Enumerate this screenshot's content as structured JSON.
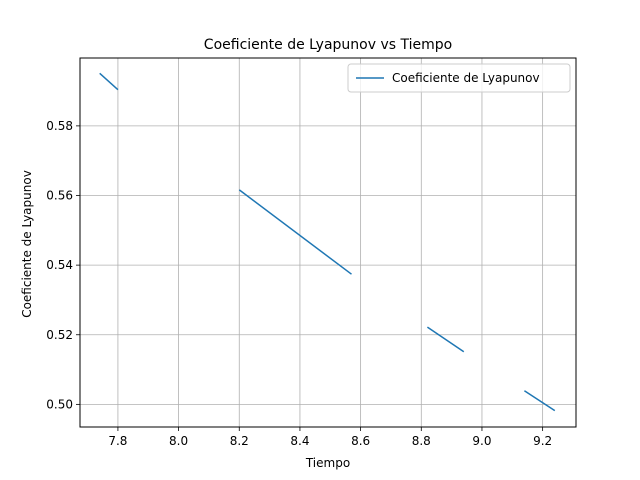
{
  "chart_data": {
    "type": "line",
    "title": "Coeficiente de Lyapunov vs Tiempo",
    "xlabel": "Tiempo",
    "ylabel": "Coeficiente de Lyapunov",
    "xlim": [
      7.675,
      9.31
    ],
    "ylim": [
      0.4935,
      0.5995
    ],
    "x_ticks": [
      7.8,
      8.0,
      8.2,
      8.4,
      8.6,
      8.8,
      9.0,
      9.2
    ],
    "x_tick_labels": [
      "7.8",
      "8.0",
      "8.2",
      "8.4",
      "8.6",
      "8.8",
      "9.0",
      "9.2"
    ],
    "y_ticks": [
      0.5,
      0.52,
      0.54,
      0.56,
      0.58
    ],
    "y_tick_labels": [
      "0.50",
      "0.52",
      "0.54",
      "0.56",
      "0.58"
    ],
    "grid": true,
    "legend_position": "top-right",
    "series": [
      {
        "name": "Coeficiente de Lyapunov",
        "color": "#1f77b4",
        "segments": [
          [
            [
              7.74,
              0.5951
            ],
            [
              7.8,
              0.5904
            ]
          ],
          [
            [
              8.2,
              0.5616
            ],
            [
              8.57,
              0.5374
            ]
          ],
          [
            [
              8.82,
              0.5222
            ],
            [
              8.94,
              0.5151
            ]
          ],
          [
            [
              9.14,
              0.5039
            ],
            [
              9.24,
              0.4982
            ]
          ]
        ]
      }
    ]
  }
}
